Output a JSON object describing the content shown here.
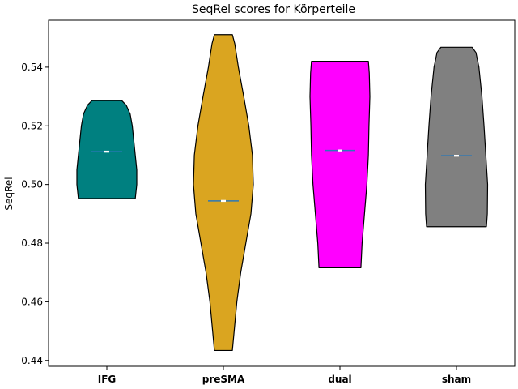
{
  "chart_data": {
    "type": "violin",
    "title": "SeqRel scores for Körperteile",
    "xlabel": "",
    "ylabel": "SeqRel",
    "ylim": [
      0.438,
      0.556
    ],
    "yticks": [
      0.44,
      0.46,
      0.48,
      0.5,
      0.52,
      0.54
    ],
    "ytick_labels": [
      "0.44",
      "0.46",
      "0.48",
      "0.50",
      "0.52",
      "0.54"
    ],
    "grid": false,
    "categories": [
      "IFG",
      "preSMA",
      "dual",
      "sham"
    ],
    "series": [
      {
        "category": "IFG",
        "color": "#008080",
        "min": 0.4952,
        "max": 0.5286,
        "median": 0.5112,
        "profile": [
          [
            0.4952,
            0.95
          ],
          [
            0.5,
            1.0
          ],
          [
            0.505,
            1.0
          ],
          [
            0.51,
            0.95
          ],
          [
            0.515,
            0.9
          ],
          [
            0.52,
            0.85
          ],
          [
            0.524,
            0.78
          ],
          [
            0.527,
            0.65
          ],
          [
            0.5286,
            0.5
          ]
        ]
      },
      {
        "category": "preSMA",
        "color": "#DAA520",
        "min": 0.4434,
        "max": 0.5511,
        "median": 0.4944,
        "profile": [
          [
            0.4434,
            0.3
          ],
          [
            0.45,
            0.36
          ],
          [
            0.46,
            0.45
          ],
          [
            0.47,
            0.58
          ],
          [
            0.48,
            0.75
          ],
          [
            0.49,
            0.92
          ],
          [
            0.5,
            1.0
          ],
          [
            0.51,
            0.97
          ],
          [
            0.52,
            0.85
          ],
          [
            0.53,
            0.68
          ],
          [
            0.54,
            0.5
          ],
          [
            0.548,
            0.38
          ],
          [
            0.5511,
            0.3
          ]
        ]
      },
      {
        "category": "dual",
        "color": "#FF00FF",
        "min": 0.4716,
        "max": 0.542,
        "median": 0.5116,
        "profile": [
          [
            0.4716,
            0.7
          ],
          [
            0.48,
            0.74
          ],
          [
            0.49,
            0.82
          ],
          [
            0.5,
            0.9
          ],
          [
            0.51,
            0.95
          ],
          [
            0.52,
            0.97
          ],
          [
            0.53,
            1.0
          ],
          [
            0.538,
            0.98
          ],
          [
            0.542,
            0.95
          ]
        ]
      },
      {
        "category": "sham",
        "color": "#808080",
        "min": 0.4856,
        "max": 0.5468,
        "median": 0.5098,
        "profile": [
          [
            0.4856,
            1.0
          ],
          [
            0.49,
            1.03
          ],
          [
            0.5,
            1.04
          ],
          [
            0.51,
            0.98
          ],
          [
            0.52,
            0.92
          ],
          [
            0.53,
            0.85
          ],
          [
            0.54,
            0.75
          ],
          [
            0.545,
            0.65
          ],
          [
            0.5468,
            0.52
          ]
        ]
      }
    ]
  }
}
